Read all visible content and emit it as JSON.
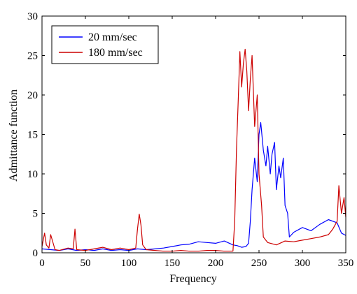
{
  "chart_data": {
    "type": "line",
    "title": "",
    "xlabel": "Frequency",
    "ylabel": "Admittance function",
    "xlim": [
      0,
      350
    ],
    "ylim": [
      0,
      30
    ],
    "xticks": [
      "0",
      "50",
      "100",
      "150",
      "200",
      "250",
      "300",
      "350"
    ],
    "yticks": [
      "0",
      "5",
      "10",
      "15",
      "20",
      "25",
      "30"
    ],
    "grid": false,
    "legend_position": "top-left",
    "series": [
      {
        "name": "20 mm/sec",
        "color": "#0000ff",
        "x": [
          0,
          10,
          20,
          30,
          40,
          50,
          60,
          70,
          80,
          90,
          100,
          110,
          120,
          130,
          140,
          150,
          160,
          170,
          180,
          190,
          200,
          210,
          220,
          225,
          230,
          235,
          238,
          240,
          242,
          245,
          248,
          250,
          252,
          255,
          258,
          260,
          263,
          265,
          268,
          270,
          273,
          275,
          278,
          280,
          283,
          285,
          290,
          300,
          310,
          320,
          330,
          340,
          345,
          350
        ],
        "y": [
          0.5,
          0.4,
          0.3,
          0.5,
          0.3,
          0.4,
          0.3,
          0.5,
          0.3,
          0.4,
          0.3,
          0.5,
          0.4,
          0.5,
          0.6,
          0.8,
          1.0,
          1.1,
          1.4,
          1.3,
          1.2,
          1.5,
          1.0,
          0.9,
          0.7,
          0.8,
          1.2,
          4.0,
          8.0,
          12.0,
          9.0,
          15.0,
          16.5,
          13.0,
          11.0,
          13.5,
          10.0,
          12.5,
          14.0,
          8.0,
          11.0,
          9.5,
          12.0,
          6.0,
          5.0,
          2.0,
          2.6,
          3.2,
          2.8,
          3.6,
          4.2,
          3.8,
          2.5,
          2.2
        ]
      },
      {
        "name": "180 mm/sec",
        "color": "#cc0000",
        "x": [
          0,
          3,
          5,
          8,
          10,
          15,
          20,
          30,
          36,
          38,
          40,
          50,
          60,
          70,
          80,
          90,
          100,
          108,
          110,
          112,
          114,
          116,
          120,
          130,
          140,
          150,
          160,
          170,
          180,
          190,
          200,
          210,
          220,
          222,
          224,
          226,
          228,
          230,
          232,
          234,
          236,
          238,
          240,
          242,
          245,
          248,
          250,
          253,
          255,
          260,
          270,
          280,
          290,
          300,
          310,
          320,
          330,
          335,
          340,
          342,
          345,
          348,
          350
        ],
        "y": [
          0.8,
          2.5,
          1.0,
          0.6,
          2.3,
          0.4,
          0.3,
          0.6,
          0.5,
          3.0,
          0.4,
          0.3,
          0.5,
          0.7,
          0.4,
          0.6,
          0.4,
          0.6,
          3.0,
          4.9,
          3.5,
          1.0,
          0.4,
          0.3,
          0.2,
          0.2,
          0.3,
          0.2,
          0.2,
          0.3,
          0.3,
          0.2,
          0.2,
          4.0,
          13.0,
          19.0,
          25.5,
          21.0,
          24.0,
          25.8,
          23.0,
          18.0,
          22.0,
          25.0,
          16.0,
          20.0,
          10.0,
          6.0,
          2.0,
          1.3,
          1.0,
          1.5,
          1.4,
          1.6,
          1.8,
          2.0,
          2.3,
          3.0,
          4.0,
          8.5,
          5.0,
          7.0,
          4.5
        ]
      }
    ]
  }
}
